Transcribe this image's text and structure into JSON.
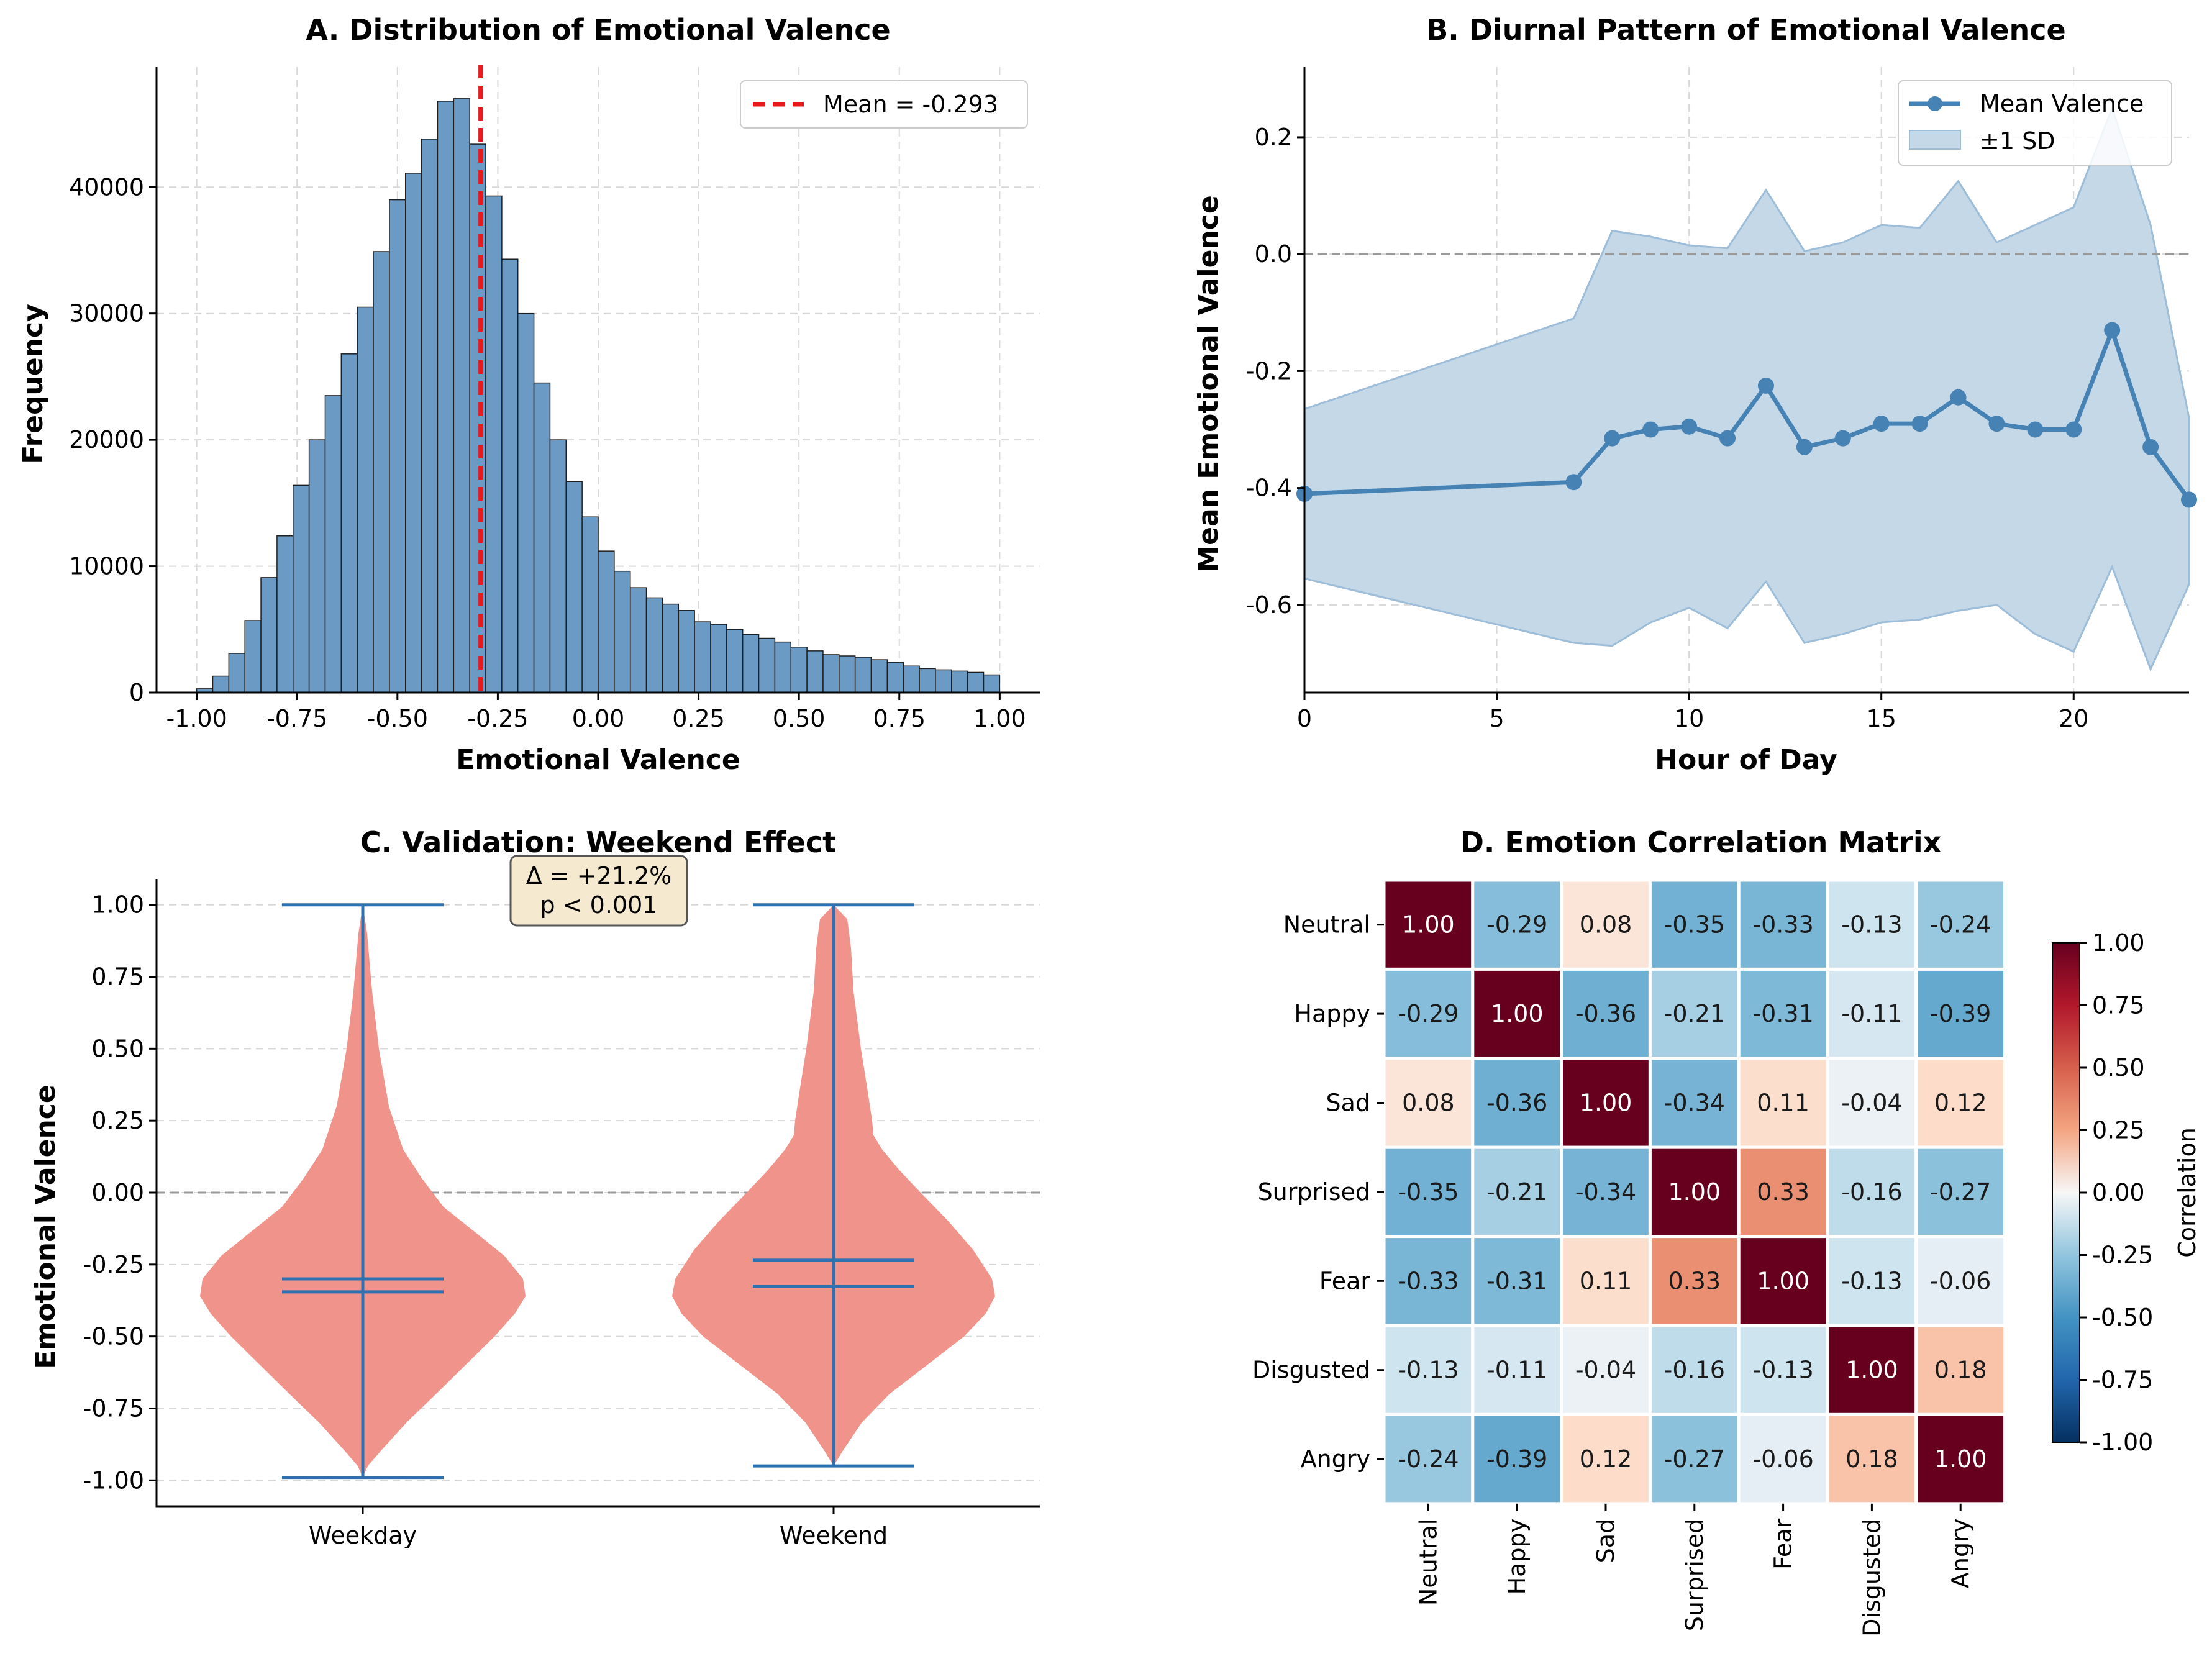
{
  "chart_data": [
    {
      "type": "bar",
      "title": "A. Distribution of Emotional Valence",
      "xlabel": "Emotional Valence",
      "ylabel": "Frequency",
      "xlim": [
        -1.1,
        1.1
      ],
      "ylim": [
        0,
        49500
      ],
      "xticks": [
        "-1.00",
        "-0.75",
        "-0.50",
        "-0.25",
        "0.00",
        "0.25",
        "0.50",
        "0.75",
        "1.00"
      ],
      "yticks": [
        "0",
        "10000",
        "20000",
        "30000",
        "40000"
      ],
      "bin_start": -1.0,
      "bin_width": 0.04,
      "values": [
        300,
        1300,
        3100,
        5700,
        9100,
        12400,
        16400,
        20000,
        23500,
        26800,
        30500,
        34900,
        39000,
        41100,
        43800,
        46800,
        47000,
        43400,
        39300,
        34300,
        30000,
        24500,
        20000,
        16700,
        13900,
        11200,
        9600,
        8300,
        7500,
        7000,
        6500,
        5600,
        5400,
        5000,
        4600,
        4300,
        4000,
        3600,
        3300,
        3000,
        2900,
        2800,
        2600,
        2400,
        2100,
        1900,
        1800,
        1700,
        1600,
        1400
      ],
      "bar_color": "#6b9ac4",
      "mean_line": {
        "value": -0.293,
        "label": "Mean = -0.293",
        "color": "#e8191c"
      }
    },
    {
      "type": "line",
      "title": "B. Diurnal Pattern of Emotional Valence",
      "xlabel": "Hour of Day",
      "ylabel": "Mean Emotional Valence",
      "xlim": [
        0,
        23
      ],
      "ylim": [
        -0.75,
        0.32
      ],
      "xticks": [
        "0",
        "5",
        "10",
        "15",
        "20"
      ],
      "yticks": [
        "0.2",
        "0.0",
        "-0.2",
        "-0.4",
        "-0.6"
      ],
      "x": [
        0,
        7,
        8,
        9,
        10,
        11,
        12,
        13,
        14,
        15,
        16,
        17,
        18,
        19,
        20,
        21,
        22,
        23
      ],
      "mean": [
        -0.41,
        -0.39,
        -0.315,
        -0.3,
        -0.295,
        -0.315,
        -0.225,
        -0.33,
        -0.315,
        -0.29,
        -0.29,
        -0.245,
        -0.29,
        -0.3,
        -0.3,
        -0.13,
        -0.33,
        -0.42
      ],
      "upper": [
        -0.265,
        -0.11,
        0.04,
        0.03,
        0.015,
        0.01,
        0.11,
        0.005,
        0.02,
        0.05,
        0.045,
        0.125,
        0.02,
        0.05,
        0.08,
        0.25,
        0.05,
        -0.28
      ],
      "lower": [
        -0.555,
        -0.665,
        -0.67,
        -0.63,
        -0.605,
        -0.64,
        -0.56,
        -0.665,
        -0.65,
        -0.63,
        -0.625,
        -0.61,
        -0.6,
        -0.65,
        -0.68,
        -0.535,
        -0.71,
        -0.565
      ],
      "legend": [
        "Mean Valence",
        "±1 SD"
      ],
      "line_color": "#4682b4",
      "band_color": "#c5d8e8"
    },
    {
      "type": "violin",
      "title": "C. Validation: Weekend Effect",
      "ylabel": "Emotional Valence",
      "categories": [
        "Weekday",
        "Weekend"
      ],
      "ylim": [
        -1.09,
        1.09
      ],
      "yticks": [
        "1.00",
        "0.75",
        "0.50",
        "0.25",
        "0.00",
        "-0.25",
        "-0.50",
        "-0.75",
        "-1.00"
      ],
      "weekday": {
        "max": 1.0,
        "min": -0.99,
        "mean": -0.3,
        "median": -0.345
      },
      "weekend": {
        "max": 1.0,
        "min": -0.95,
        "mean": -0.235,
        "median": -0.325
      },
      "annotation_line1": "Δ = +21.2%",
      "annotation_line2": "p < 0.001",
      "fill_color": "#f0938a",
      "line_color": "#2e70b0"
    },
    {
      "type": "heatmap",
      "title": "D. Emotion Correlation Matrix",
      "labels": [
        "Neutral",
        "Happy",
        "Sad",
        "Surprised",
        "Fear",
        "Disgusted",
        "Angry"
      ],
      "matrix": [
        [
          1.0,
          -0.29,
          0.08,
          -0.35,
          -0.33,
          -0.13,
          -0.24
        ],
        [
          -0.29,
          1.0,
          -0.36,
          -0.21,
          -0.31,
          -0.11,
          -0.39
        ],
        [
          0.08,
          -0.36,
          1.0,
          -0.34,
          0.11,
          -0.04,
          0.12
        ],
        [
          -0.35,
          -0.21,
          -0.34,
          1.0,
          0.33,
          -0.16,
          -0.27
        ],
        [
          -0.33,
          -0.31,
          0.11,
          0.33,
          1.0,
          -0.13,
          -0.06
        ],
        [
          -0.13,
          -0.11,
          -0.04,
          -0.16,
          -0.13,
          1.0,
          0.18
        ],
        [
          -0.24,
          -0.39,
          0.12,
          -0.27,
          -0.06,
          0.18,
          1.0
        ]
      ],
      "colorbar_label": "Correlation",
      "colorbar_ticks": [
        "1.00",
        "0.75",
        "0.50",
        "0.25",
        "0.00",
        "-0.25",
        "-0.50",
        "-0.75",
        "-1.00"
      ],
      "vmin": -1,
      "vmax": 1
    }
  ]
}
